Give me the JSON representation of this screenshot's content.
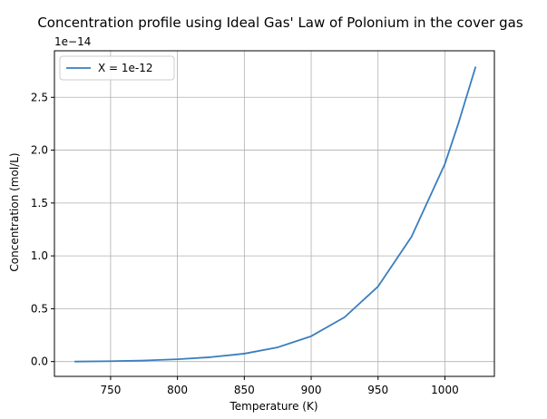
{
  "chart_data": {
    "type": "line",
    "title": "Concentration profile using Ideal Gas' Law of Polonium in the cover gas",
    "xlabel": "Temperature (K)",
    "ylabel": "Concentration (mol/L)",
    "y_offset_label": "1e−14",
    "xlim": [
      708,
      1037
    ],
    "ylim": [
      -0.14,
      2.94
    ],
    "y_scale_multiplier": 1e-14,
    "x_ticks": [
      750,
      800,
      850,
      900,
      950,
      1000
    ],
    "x_tick_labels": [
      "750",
      "800",
      "850",
      "900",
      "950",
      "1000"
    ],
    "y_ticks": [
      0.0,
      0.5,
      1.0,
      1.5,
      2.0,
      2.5
    ],
    "y_tick_labels": [
      "0.0",
      "0.5",
      "1.0",
      "1.5",
      "2.0",
      "2.5"
    ],
    "grid": true,
    "legend_position": "top-left",
    "colors": {
      "line": "#3a7ebf",
      "grid": "#b0b0b0"
    },
    "series": [
      {
        "name": "X = 1e-12",
        "x": [
          723,
          750,
          775,
          800,
          825,
          850,
          875,
          900,
          925,
          950,
          975,
          1000,
          1010,
          1023
        ],
        "y": [
          0.0,
          0.004,
          0.01,
          0.022,
          0.042,
          0.075,
          0.135,
          0.24,
          0.42,
          0.71,
          1.18,
          1.87,
          2.25,
          2.79
        ]
      }
    ]
  }
}
